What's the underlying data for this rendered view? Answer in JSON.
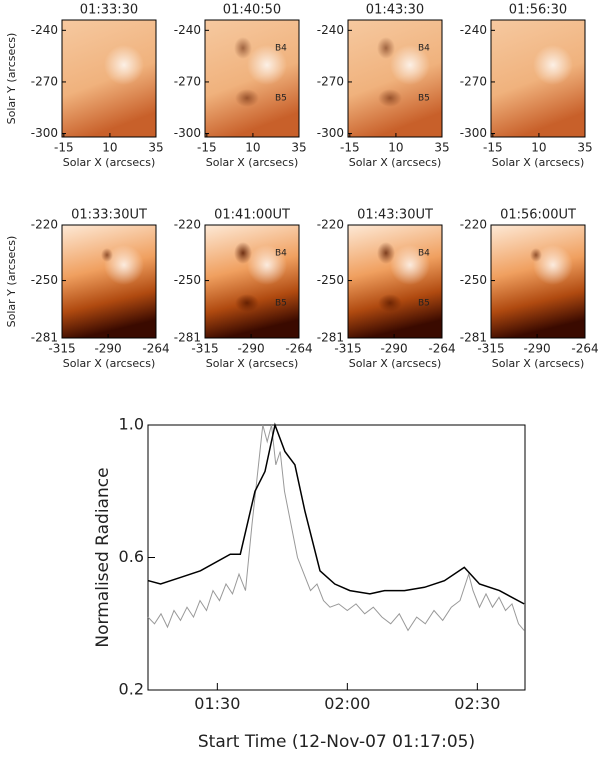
{
  "chart_data": [
    {
      "type": "image",
      "title": "01:33:30",
      "x_label": "Solar X (arcsecs)",
      "y_label": "Solar Y (arcsecs)",
      "xlim": [
        -16,
        35
      ],
      "ylim": [
        -302,
        -234
      ],
      "xticks": [
        -15,
        10,
        35
      ],
      "yticks": [
        -240,
        -270,
        -300
      ]
    },
    {
      "type": "image",
      "title": "01:40:50",
      "x_label": "Solar X (arcsecs)",
      "xlim": [
        -16,
        35
      ],
      "ylim": [
        -302,
        -234
      ],
      "xticks": [
        -15,
        10,
        35
      ],
      "yticks": [
        -240,
        -270,
        -300
      ],
      "annotations": [
        "B4",
        "B5"
      ]
    },
    {
      "type": "image",
      "title": "01:43:30",
      "x_label": "Solar X (arcsecs)",
      "xlim": [
        -16,
        35
      ],
      "ylim": [
        -302,
        -234
      ],
      "xticks": [
        -15,
        10,
        35
      ],
      "yticks": [
        -240,
        -270,
        -300
      ],
      "annotations": [
        "B4",
        "B5"
      ]
    },
    {
      "type": "image",
      "title": "01:56:30",
      "x_label": "Solar X (arcsecs)",
      "xlim": [
        -16,
        35
      ],
      "ylim": [
        -302,
        -234
      ],
      "xticks": [
        -15,
        10,
        35
      ],
      "yticks": [
        -240,
        -270,
        -300
      ]
    },
    {
      "type": "image",
      "title": "01:33:30UT",
      "x_label": "Solar X (arcsecs)",
      "y_label": "Solar Y (arcsecs)",
      "xlim": [
        -315,
        -264
      ],
      "ylim": [
        -281,
        -220
      ],
      "xticks": [
        -315,
        -290,
        -264
      ],
      "yticks": [
        -220,
        -250,
        -281
      ]
    },
    {
      "type": "image",
      "title": "01:41:00UT",
      "x_label": "Solar X (arcsecs)",
      "xlim": [
        -315,
        -264
      ],
      "ylim": [
        -281,
        -220
      ],
      "xticks": [
        -315,
        -290,
        -264
      ],
      "yticks": [
        -220,
        -250,
        -281
      ],
      "annotations": [
        "B4",
        "B5"
      ]
    },
    {
      "type": "image",
      "title": "01:43:30UT",
      "x_label": "Solar X (arcsecs)",
      "xlim": [
        -315,
        -264
      ],
      "ylim": [
        -281,
        -220
      ],
      "xticks": [
        -315,
        -290,
        -264
      ],
      "yticks": [
        -220,
        -250,
        -281
      ],
      "annotations": [
        "B4",
        "B5"
      ]
    },
    {
      "type": "image",
      "title": "01:56:00UT",
      "x_label": "Solar X (arcsecs)",
      "xlim": [
        -315,
        -264
      ],
      "ylim": [
        -281,
        -220
      ],
      "xticks": [
        -315,
        -290,
        -264
      ],
      "yticks": [
        -220,
        -250,
        -281
      ]
    },
    {
      "type": "line",
      "x_label": "Start Time (12-Nov-07 01:17:05)",
      "y_label": "Normalised Radiance",
      "xlim": [
        74,
        161
      ],
      "ylim": [
        0.2,
        1.0
      ],
      "xticks": [
        {
          "value": 90,
          "label": "01:30"
        },
        {
          "value": 120,
          "label": "02:00"
        },
        {
          "value": 150,
          "label": "02:30"
        }
      ],
      "yticks": [
        0.2,
        0.6,
        {
          "value": 1,
          "label": "1.0"
        }
      ],
      "series": [
        {
          "color": "#999999",
          "x": [
            74,
            75.5,
            77,
            78.5,
            80,
            81.5,
            83,
            84.5,
            86,
            87.5,
            89,
            90.5,
            92,
            93.5,
            95,
            96.5,
            98,
            99.5,
            100.5,
            101.5,
            102.5,
            103.5,
            104.5,
            105.5,
            107,
            108.5,
            110,
            111.5,
            113,
            114.5,
            116,
            118,
            120,
            122,
            124,
            126,
            128,
            130,
            132,
            134,
            136,
            138,
            140,
            142,
            144,
            146,
            148,
            149,
            150.5,
            152,
            153.5,
            155,
            156.5,
            158,
            159.5,
            160.8
          ],
          "values": [
            0.42,
            0.4,
            0.43,
            0.39,
            0.44,
            0.41,
            0.45,
            0.42,
            0.47,
            0.44,
            0.5,
            0.47,
            0.52,
            0.49,
            0.55,
            0.5,
            0.7,
            0.88,
            1.0,
            0.95,
            1.0,
            0.88,
            0.92,
            0.8,
            0.7,
            0.6,
            0.55,
            0.5,
            0.52,
            0.47,
            0.45,
            0.46,
            0.44,
            0.46,
            0.43,
            0.45,
            0.42,
            0.4,
            0.43,
            0.38,
            0.42,
            0.4,
            0.44,
            0.41,
            0.45,
            0.47,
            0.55,
            0.5,
            0.45,
            0.49,
            0.45,
            0.48,
            0.44,
            0.46,
            0.4,
            0.38
          ]
        },
        {
          "color": "#000000",
          "x": [
            74.1,
            76.9,
            81.5,
            86.1,
            93.0,
            95.3,
            98.7,
            101.0,
            103.3,
            105.6,
            107.9,
            110.2,
            113.7,
            117.1,
            120.6,
            125.2,
            128.6,
            133.2,
            137.8,
            142.4,
            147.0,
            150.5,
            155.1,
            160.8
          ],
          "values": [
            0.53,
            0.52,
            0.54,
            0.56,
            0.61,
            0.61,
            0.8,
            0.86,
            1.0,
            0.92,
            0.88,
            0.74,
            0.56,
            0.52,
            0.5,
            0.49,
            0.5,
            0.5,
            0.51,
            0.53,
            0.57,
            0.52,
            0.5,
            0.46
          ]
        }
      ]
    }
  ]
}
